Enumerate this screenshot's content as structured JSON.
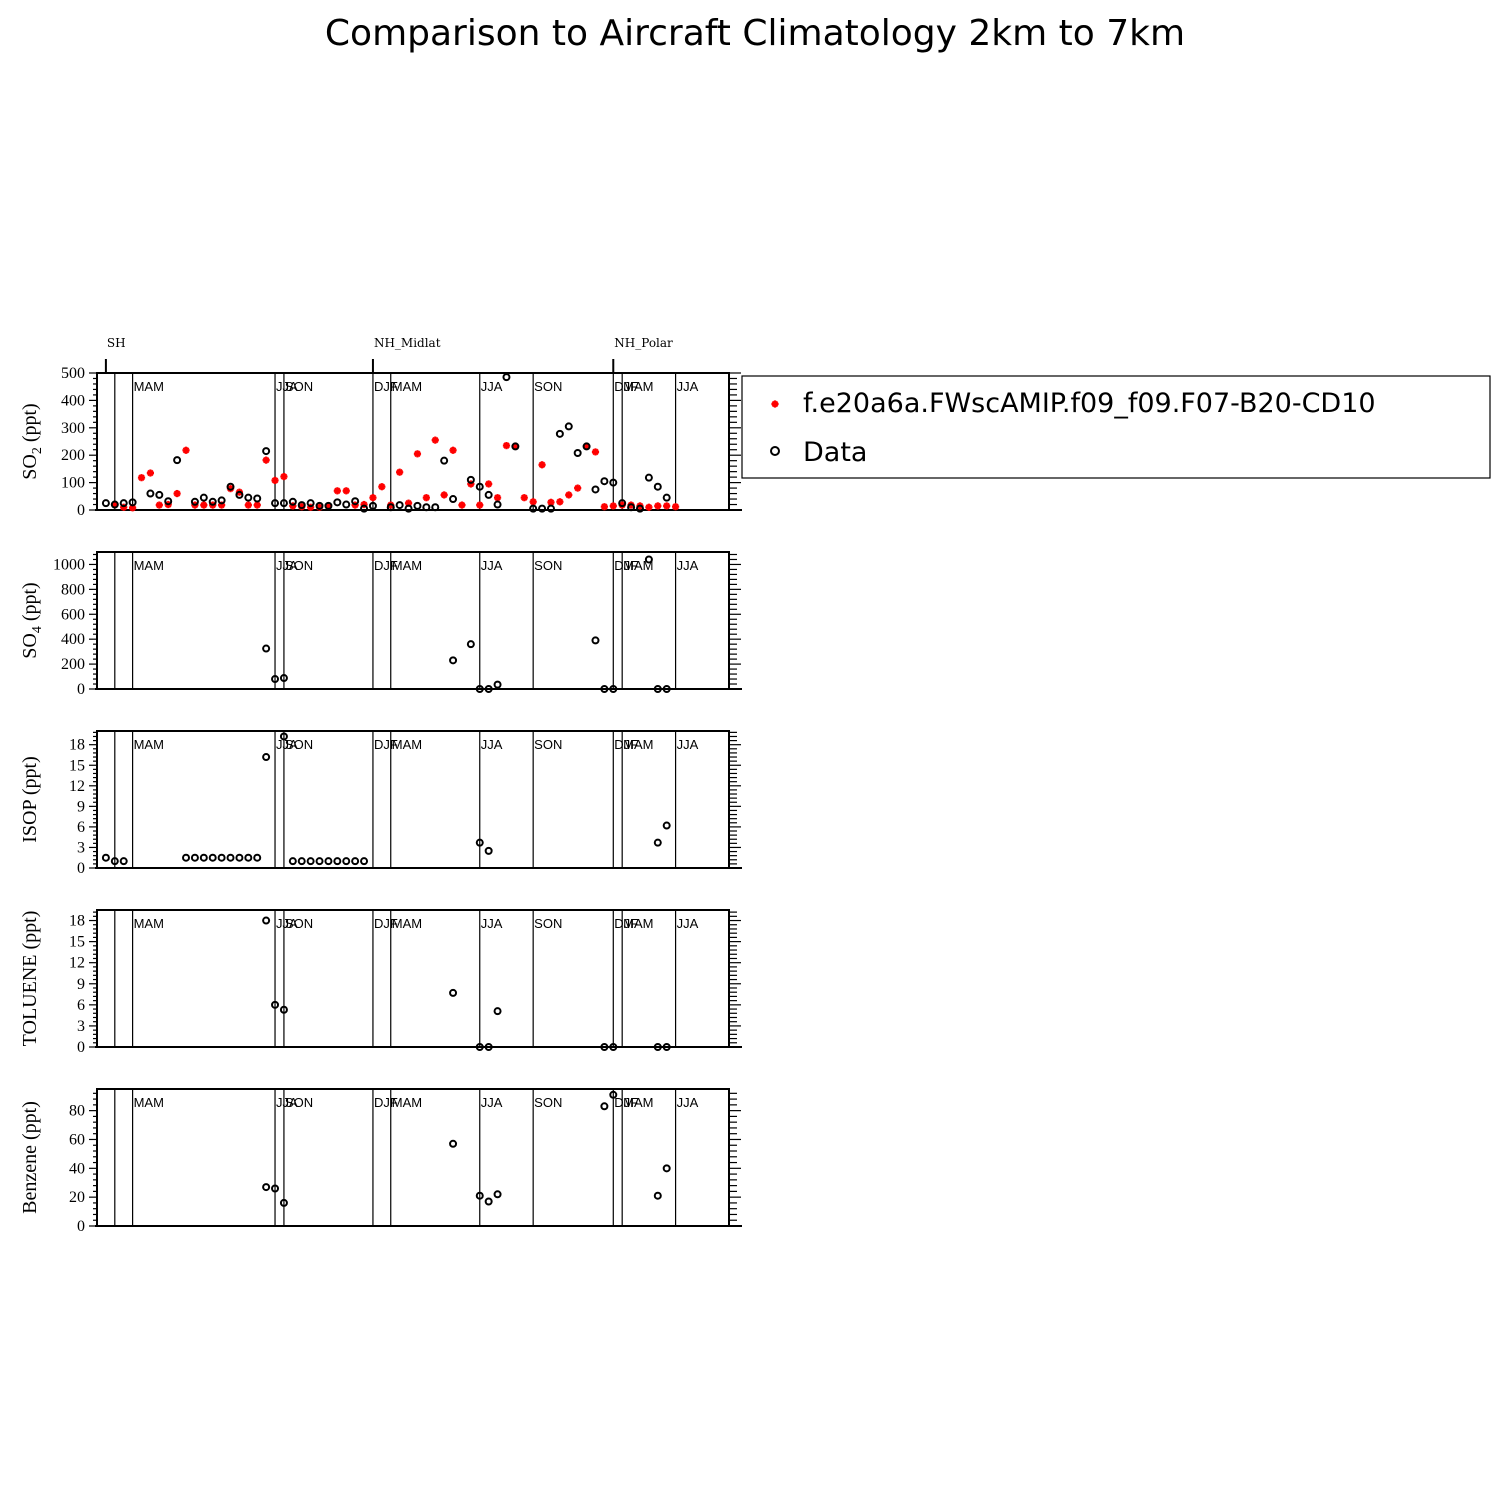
{
  "figure": {
    "title": "Comparison to Aircraft Climatology  2km to 7km",
    "regions": [
      "SH",
      "NH_Midlat",
      "NH_Polar"
    ],
    "season_labels": [
      "MAM",
      "JJA",
      "SON",
      "DJF",
      "MAM",
      "JJA",
      "SON",
      "DJF",
      "MAM",
      "JJA"
    ],
    "legend": {
      "model": "f.e20a6a.FWscAMIP.f09_f09.F07-B20-CD10",
      "data": "Data"
    },
    "colors": {
      "model": "#ff0000",
      "data": "#000000"
    },
    "marker_names": {
      "model": "asterisk-marker",
      "data": "circle-marker"
    }
  },
  "chart_data": [
    {
      "type": "scatter",
      "ylabel_main": "SO",
      "ylabel_sub": "2",
      "ylabel_tail": " (ppt)",
      "ylim": [
        0,
        500
      ],
      "yticks": [
        0,
        100,
        200,
        300,
        400,
        500
      ],
      "series": [
        {
          "name": "f.e20a6a.FWscAMIP.f09_f09.F07-B20-CD10",
          "marker": "asterisk",
          "values": [
            [
              1,
              20
            ],
            [
              2,
              10
            ],
            [
              3,
              8
            ],
            [
              4,
              118
            ],
            [
              5,
              135
            ],
            [
              6,
              18
            ],
            [
              7,
              20
            ],
            [
              8,
              60
            ],
            [
              9,
              218
            ],
            [
              10,
              18
            ],
            [
              11,
              18
            ],
            [
              12,
              18
            ],
            [
              13,
              18
            ],
            [
              14,
              78
            ],
            [
              15,
              65
            ],
            [
              16,
              18
            ],
            [
              17,
              18
            ],
            [
              18,
              182
            ],
            [
              19,
              108
            ],
            [
              20,
              122
            ],
            [
              21,
              15
            ],
            [
              22,
              12
            ],
            [
              23,
              10
            ],
            [
              24,
              10
            ],
            [
              25,
              15
            ],
            [
              26,
              70
            ],
            [
              27,
              70
            ],
            [
              28,
              18
            ],
            [
              29,
              20
            ],
            [
              30,
              45
            ],
            [
              31,
              85
            ],
            [
              32,
              18
            ],
            [
              33,
              138
            ],
            [
              34,
              25
            ],
            [
              35,
              205
            ],
            [
              36,
              45
            ],
            [
              37,
              255
            ],
            [
              38,
              55
            ],
            [
              39,
              218
            ],
            [
              40,
              18
            ],
            [
              41,
              95
            ],
            [
              42,
              18
            ],
            [
              43,
              95
            ],
            [
              44,
              45
            ],
            [
              45,
              235
            ],
            [
              46,
              232
            ],
            [
              47,
              45
            ],
            [
              48,
              30
            ],
            [
              49,
              165
            ],
            [
              50,
              28
            ],
            [
              51,
              30
            ],
            [
              52,
              55
            ],
            [
              53,
              80
            ],
            [
              54,
              232
            ],
            [
              55,
              212
            ],
            [
              56,
              12
            ],
            [
              57,
              15
            ],
            [
              58,
              18
            ],
            [
              59,
              18
            ],
            [
              60,
              15
            ],
            [
              61,
              10
            ],
            [
              62,
              15
            ],
            [
              63,
              15
            ],
            [
              64,
              12
            ]
          ]
        },
        {
          "name": "Data",
          "marker": "circle",
          "values": [
            [
              0,
              25
            ],
            [
              1,
              20
            ],
            [
              2,
              25
            ],
            [
              3,
              28
            ],
            [
              5,
              60
            ],
            [
              6,
              55
            ],
            [
              7,
              32
            ],
            [
              8,
              182
            ],
            [
              10,
              30
            ],
            [
              11,
              45
            ],
            [
              12,
              30
            ],
            [
              13,
              35
            ],
            [
              14,
              85
            ],
            [
              15,
              55
            ],
            [
              16,
              45
            ],
            [
              17,
              42
            ],
            [
              18,
              215
            ],
            [
              19,
              25
            ],
            [
              20,
              25
            ],
            [
              21,
              30
            ],
            [
              22,
              18
            ],
            [
              23,
              25
            ],
            [
              24,
              15
            ],
            [
              25,
              15
            ],
            [
              26,
              28
            ],
            [
              27,
              20
            ],
            [
              28,
              32
            ],
            [
              29,
              5
            ],
            [
              30,
              15
            ],
            [
              32,
              10
            ],
            [
              33,
              18
            ],
            [
              34,
              5
            ],
            [
              35,
              15
            ],
            [
              36,
              10
            ],
            [
              37,
              10
            ],
            [
              38,
              180
            ],
            [
              39,
              40
            ],
            [
              41,
              110
            ],
            [
              42,
              85
            ],
            [
              43,
              55
            ],
            [
              44,
              20
            ],
            [
              45,
              485
            ],
            [
              46,
              232
            ],
            [
              48,
              5
            ],
            [
              49,
              5
            ],
            [
              50,
              5
            ],
            [
              51,
              278
            ],
            [
              52,
              305
            ],
            [
              53,
              208
            ],
            [
              54,
              232
            ],
            [
              55,
              75
            ],
            [
              56,
              105
            ],
            [
              57,
              100
            ],
            [
              58,
              25
            ],
            [
              59,
              10
            ],
            [
              60,
              5
            ],
            [
              61,
              118
            ],
            [
              62,
              85
            ],
            [
              63,
              45
            ]
          ]
        }
      ]
    },
    {
      "type": "scatter",
      "ylabel_main": "SO",
      "ylabel_sub": "4",
      "ylabel_tail": " (ppt)",
      "ylim": [
        0,
        1100
      ],
      "yticks": [
        0,
        200,
        400,
        600,
        800,
        1000
      ],
      "series": [
        {
          "name": "Data",
          "marker": "circle",
          "values": [
            [
              18,
              325
            ],
            [
              19,
              80
            ],
            [
              20,
              88
            ],
            [
              39,
              230
            ],
            [
              41,
              360
            ],
            [
              42,
              0
            ],
            [
              43,
              0
            ],
            [
              44,
              35
            ],
            [
              55,
              390
            ],
            [
              56,
              0
            ],
            [
              57,
              0
            ],
            [
              61,
              1040
            ],
            [
              62,
              0
            ],
            [
              63,
              0
            ]
          ]
        }
      ]
    },
    {
      "type": "scatter",
      "ylabel_main": "ISOP (ppt)",
      "ylim": [
        0,
        20
      ],
      "yticks": [
        0,
        3,
        6,
        9,
        12,
        15,
        18
      ],
      "series": [
        {
          "name": "Data",
          "marker": "circle",
          "values": [
            [
              0,
              1.5
            ],
            [
              1,
              1
            ],
            [
              2,
              1
            ],
            [
              9,
              1.5
            ],
            [
              10,
              1.5
            ],
            [
              11,
              1.5
            ],
            [
              12,
              1.5
            ],
            [
              13,
              1.5
            ],
            [
              14,
              1.5
            ],
            [
              15,
              1.5
            ],
            [
              16,
              1.5
            ],
            [
              17,
              1.5
            ],
            [
              18,
              16.2
            ],
            [
              20,
              19.2
            ],
            [
              21,
              1
            ],
            [
              22,
              1
            ],
            [
              23,
              1
            ],
            [
              24,
              1
            ],
            [
              25,
              1
            ],
            [
              26,
              1
            ],
            [
              27,
              1
            ],
            [
              28,
              1
            ],
            [
              29,
              1
            ],
            [
              42,
              3.7
            ],
            [
              43,
              2.5
            ],
            [
              62,
              3.7
            ],
            [
              63,
              6.2
            ]
          ]
        }
      ]
    },
    {
      "type": "scatter",
      "ylabel_main": "TOLUENE (ppt)",
      "ylim": [
        0,
        19.5
      ],
      "yticks": [
        0,
        3,
        6,
        9,
        12,
        15,
        18
      ],
      "series": [
        {
          "name": "Data",
          "marker": "circle",
          "values": [
            [
              18,
              18
            ],
            [
              19,
              6
            ],
            [
              20,
              5.3
            ],
            [
              39,
              7.7
            ],
            [
              42,
              0
            ],
            [
              43,
              0
            ],
            [
              44,
              5.1
            ],
            [
              56,
              0
            ],
            [
              57,
              0
            ],
            [
              62,
              0
            ],
            [
              63,
              0
            ]
          ]
        }
      ]
    },
    {
      "type": "scatter",
      "ylabel_main": "Benzene (ppt)",
      "ylim": [
        0,
        95
      ],
      "yticks": [
        0,
        20,
        40,
        60,
        80
      ],
      "series": [
        {
          "name": "Data",
          "marker": "circle",
          "values": [
            [
              18,
              27
            ],
            [
              19,
              26
            ],
            [
              20,
              16
            ],
            [
              39,
              57
            ],
            [
              42,
              21
            ],
            [
              43,
              17
            ],
            [
              44,
              22
            ],
            [
              56,
              83
            ],
            [
              57,
              91
            ],
            [
              62,
              21
            ],
            [
              63,
              40
            ]
          ]
        }
      ]
    }
  ]
}
